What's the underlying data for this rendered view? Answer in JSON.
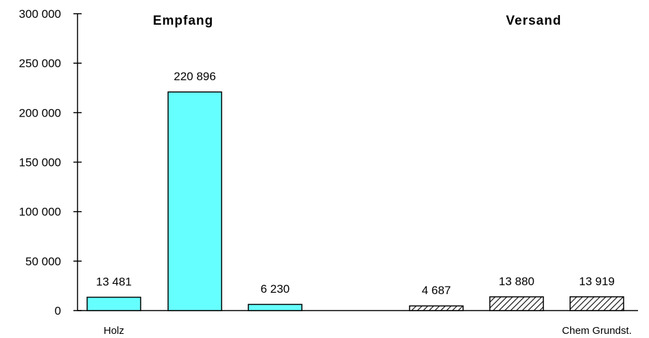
{
  "chart_data": {
    "type": "bar",
    "groups": [
      {
        "title": "Empfang",
        "style": "solid",
        "color": "#66ffff",
        "bars": [
          {
            "value": 13481,
            "label": "13 481",
            "category": "Holz"
          },
          {
            "value": 220896,
            "label": "220 896",
            "category": ""
          },
          {
            "value": 6230,
            "label": "6 230",
            "category": ""
          }
        ]
      },
      {
        "title": "Versand",
        "style": "hatched",
        "color": "#ffffff",
        "bars": [
          {
            "value": 4687,
            "label": "4 687",
            "category": ""
          },
          {
            "value": 13880,
            "label": "13 880",
            "category": ""
          },
          {
            "value": 13919,
            "label": "13 919",
            "category": "Chem Grundst."
          }
        ]
      }
    ],
    "y_ticks": [
      {
        "value": 0,
        "label": "0"
      },
      {
        "value": 50000,
        "label": "50 000"
      },
      {
        "value": 100000,
        "label": "100 000"
      },
      {
        "value": 150000,
        "label": "150 000"
      },
      {
        "value": 200000,
        "label": "200 000"
      },
      {
        "value": 250000,
        "label": "250 000"
      },
      {
        "value": 300000,
        "label": "300 000"
      }
    ],
    "ylim": [
      0,
      300000
    ],
    "grid": false,
    "legend": "none"
  }
}
